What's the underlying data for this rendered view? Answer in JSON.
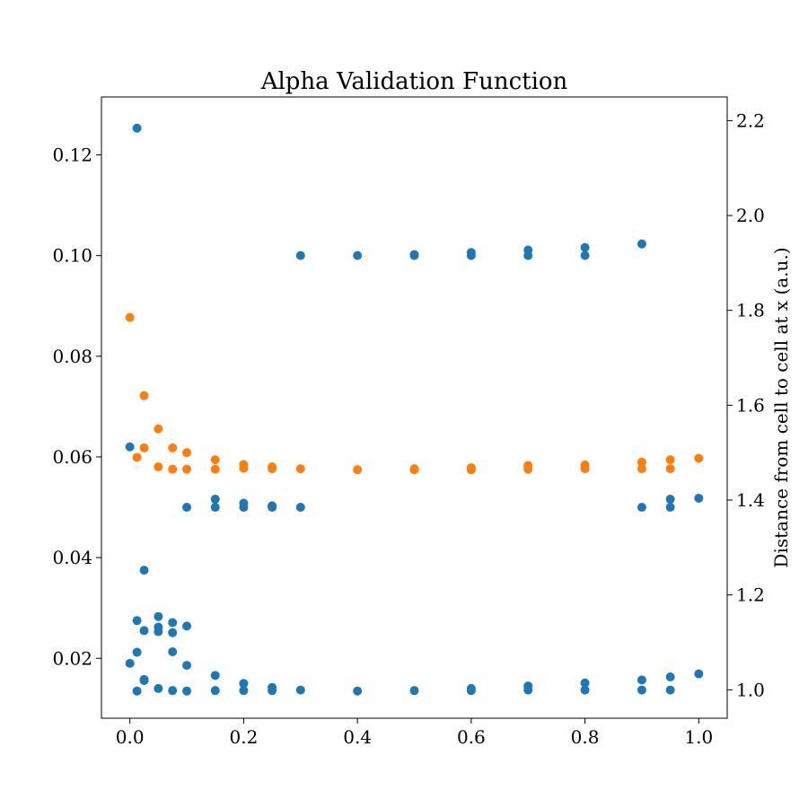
{
  "chart_data": {
    "type": "scatter",
    "title": "Alpha Validation Function",
    "xlabel": "",
    "ylabel_left": "",
    "ylabel_right": "Distance from cell to cell at x (a.u.)",
    "xlim": [
      -0.05,
      1.05
    ],
    "ylim_left": [
      0.0081,
      0.1315
    ],
    "ylim_right": [
      0.94,
      2.25
    ],
    "x_ticks": [
      0.0,
      0.2,
      0.4,
      0.6,
      0.8,
      1.0
    ],
    "x_tick_labels": [
      "0.0",
      "0.2",
      "0.4",
      "0.6",
      "0.8",
      "1.0"
    ],
    "y_left_ticks": [
      0.02,
      0.04,
      0.06,
      0.08,
      0.1,
      0.12
    ],
    "y_left_tick_labels": [
      "0.02",
      "0.04",
      "0.06",
      "0.08",
      "0.10",
      "0.12"
    ],
    "y_right_ticks": [
      1.0,
      1.2,
      1.4,
      1.6,
      1.8,
      2.0,
      2.2
    ],
    "y_right_tick_labels": [
      "1.0",
      "1.2",
      "1.4",
      "1.6",
      "1.8",
      "2.0",
      "2.2"
    ],
    "grid": false,
    "legend": "none",
    "series": [
      {
        "axis": "left",
        "color": "#1f77b4",
        "points": [
          [
            0.0,
            0.062
          ],
          [
            0.0,
            0.019
          ],
          [
            0.0125,
            0.1253
          ],
          [
            0.0125,
            0.0275
          ],
          [
            0.0125,
            0.0212
          ],
          [
            0.0125,
            0.0135
          ],
          [
            0.025,
            0.0375
          ],
          [
            0.025,
            0.0255
          ],
          [
            0.025,
            0.0158
          ],
          [
            0.025,
            0.0156
          ],
          [
            0.05,
            0.0283
          ],
          [
            0.05,
            0.0262
          ],
          [
            0.05,
            0.0253
          ],
          [
            0.05,
            0.014
          ],
          [
            0.075,
            0.0271
          ],
          [
            0.075,
            0.0251
          ],
          [
            0.075,
            0.0213
          ],
          [
            0.075,
            0.0136
          ],
          [
            0.1,
            0.05
          ],
          [
            0.1,
            0.0264
          ],
          [
            0.1,
            0.0186
          ],
          [
            0.1,
            0.0135
          ],
          [
            0.15,
            0.0516
          ],
          [
            0.15,
            0.05
          ],
          [
            0.15,
            0.0166
          ],
          [
            0.15,
            0.0136
          ],
          [
            0.2,
            0.0508
          ],
          [
            0.2,
            0.05
          ],
          [
            0.2,
            0.015
          ],
          [
            0.2,
            0.0136
          ],
          [
            0.25,
            0.0503
          ],
          [
            0.25,
            0.05
          ],
          [
            0.25,
            0.0142
          ],
          [
            0.25,
            0.0136
          ],
          [
            0.3,
            0.1
          ],
          [
            0.3,
            0.05
          ],
          [
            0.3,
            0.0137
          ],
          [
            0.4,
            0.1
          ],
          [
            0.4,
            0.0135
          ],
          [
            0.5,
            0.1002
          ],
          [
            0.5,
            0.1
          ],
          [
            0.5,
            0.0136
          ],
          [
            0.6,
            0.1006
          ],
          [
            0.6,
            0.1
          ],
          [
            0.6,
            0.014
          ],
          [
            0.6,
            0.0136
          ],
          [
            0.7,
            0.1011
          ],
          [
            0.7,
            0.1
          ],
          [
            0.7,
            0.0145
          ],
          [
            0.7,
            0.0137
          ],
          [
            0.8,
            0.1016
          ],
          [
            0.8,
            0.1
          ],
          [
            0.8,
            0.0151
          ],
          [
            0.8,
            0.0137
          ],
          [
            0.9,
            0.1023
          ],
          [
            0.9,
            0.05
          ],
          [
            0.9,
            0.0157
          ],
          [
            0.9,
            0.0137
          ],
          [
            0.95,
            0.0516
          ],
          [
            0.95,
            0.05
          ],
          [
            0.95,
            0.0163
          ],
          [
            0.95,
            0.0137
          ],
          [
            1.0,
            0.0518
          ],
          [
            1.0,
            0.0169
          ]
        ]
      },
      {
        "axis": "right",
        "color": "#ff7f0e",
        "points": [
          [
            0.0,
            1.785
          ],
          [
            0.0125,
            1.49
          ],
          [
            0.025,
            1.62
          ],
          [
            0.025,
            1.51
          ],
          [
            0.05,
            1.55
          ],
          [
            0.05,
            1.47
          ],
          [
            0.075,
            1.51
          ],
          [
            0.075,
            1.465
          ],
          [
            0.1,
            1.5
          ],
          [
            0.1,
            1.465
          ],
          [
            0.15,
            1.485
          ],
          [
            0.15,
            1.465
          ],
          [
            0.2,
            1.475
          ],
          [
            0.2,
            1.467
          ],
          [
            0.25,
            1.47
          ],
          [
            0.25,
            1.466
          ],
          [
            0.3,
            1.466
          ],
          [
            0.4,
            1.464
          ],
          [
            0.5,
            1.466
          ],
          [
            0.5,
            1.464
          ],
          [
            0.6,
            1.468
          ],
          [
            0.6,
            1.464
          ],
          [
            0.7,
            1.473
          ],
          [
            0.7,
            1.465
          ],
          [
            0.8,
            1.474
          ],
          [
            0.8,
            1.466
          ],
          [
            0.9,
            1.48
          ],
          [
            0.9,
            1.466
          ],
          [
            0.95,
            1.485
          ],
          [
            0.95,
            1.466
          ],
          [
            1.0,
            1.488
          ]
        ]
      }
    ]
  }
}
